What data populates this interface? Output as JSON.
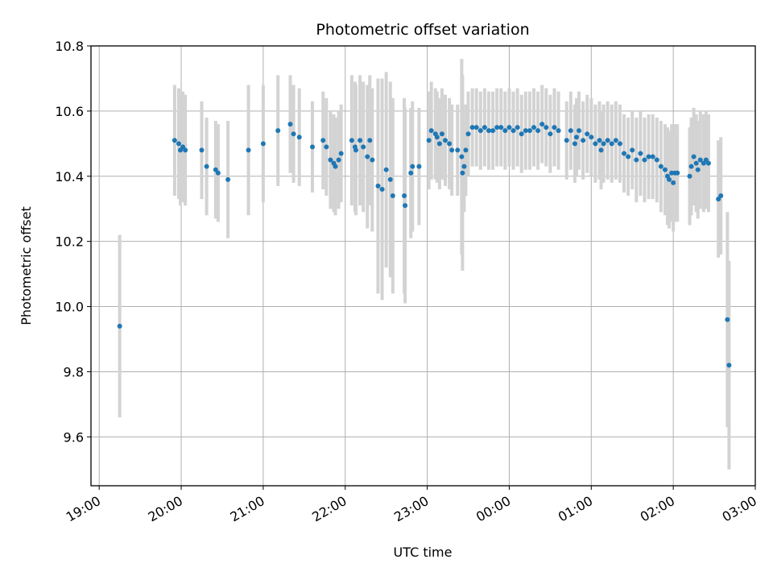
{
  "chart_data": {
    "type": "scatter",
    "title": "Photometric offset variation",
    "xlabel": "UTC time",
    "ylabel": "Photometric offset",
    "x_ticks": [
      "19:00",
      "20:00",
      "21:00",
      "22:00",
      "23:00",
      "00:00",
      "01:00",
      "02:00",
      "03:00"
    ],
    "y_ticks": [
      "9.6",
      "9.8",
      "10.0",
      "10.2",
      "10.4",
      "10.6",
      "10.8"
    ],
    "x_range_hours": [
      18.9,
      27.0
    ],
    "ylim": [
      9.45,
      10.8
    ],
    "grid": true,
    "colors": {
      "point": "#1f77b4",
      "errorbar": "#d3d3d3",
      "grid": "#b0b0b0"
    },
    "series": [
      {
        "x": [
          19.25,
          19.92,
          19.97,
          19.99,
          20.02,
          20.05,
          20.25,
          20.31,
          20.42,
          20.45,
          20.57,
          20.82,
          21.0,
          21.18,
          21.33,
          21.37,
          21.44,
          21.6,
          21.73,
          21.77,
          21.82,
          21.86,
          21.88,
          21.92,
          21.95,
          22.08,
          22.12,
          22.13,
          22.18,
          22.22,
          22.27,
          22.3,
          22.33,
          22.4,
          22.45,
          22.5,
          22.55,
          22.58,
          22.72,
          22.73,
          22.8,
          22.82,
          22.9,
          23.02,
          23.05,
          23.1,
          23.12,
          23.15,
          23.18,
          23.22,
          23.27,
          23.3,
          23.37,
          23.42,
          23.43,
          23.45,
          23.47,
          23.5,
          23.55,
          23.6,
          23.65,
          23.7,
          23.75,
          23.8,
          23.85,
          23.9,
          23.95,
          24.0,
          24.05,
          24.1,
          24.15,
          24.2,
          24.25,
          24.3,
          24.35,
          24.4,
          24.45,
          24.5,
          24.55,
          24.6,
          24.7,
          24.75,
          24.8,
          24.82,
          24.85,
          24.9,
          24.95,
          25.0,
          25.05,
          25.1,
          25.12,
          25.15,
          25.2,
          25.25,
          25.3,
          25.35,
          25.4,
          25.45,
          25.5,
          25.55,
          25.6,
          25.65,
          25.7,
          25.75,
          25.8,
          25.85,
          25.9,
          25.93,
          25.95,
          25.98,
          26.0,
          26.02,
          26.05,
          26.2,
          26.22,
          26.25,
          26.28,
          26.3,
          26.33,
          26.37,
          26.4,
          26.43,
          26.55,
          26.58,
          26.66,
          26.68
        ],
        "y": [
          9.94,
          10.51,
          10.5,
          10.48,
          10.49,
          10.48,
          10.48,
          10.43,
          10.42,
          10.41,
          10.39,
          10.48,
          10.5,
          10.54,
          10.56,
          10.53,
          10.52,
          10.49,
          10.51,
          10.49,
          10.45,
          10.44,
          10.43,
          10.45,
          10.47,
          10.51,
          10.49,
          10.48,
          10.51,
          10.49,
          10.46,
          10.51,
          10.45,
          10.37,
          10.36,
          10.42,
          10.39,
          10.34,
          10.34,
          10.31,
          10.41,
          10.43,
          10.43,
          10.51,
          10.54,
          10.53,
          10.52,
          10.5,
          10.53,
          10.51,
          10.5,
          10.48,
          10.48,
          10.46,
          10.41,
          10.43,
          10.48,
          10.53,
          10.55,
          10.55,
          10.54,
          10.55,
          10.54,
          10.54,
          10.55,
          10.55,
          10.54,
          10.55,
          10.54,
          10.55,
          10.53,
          10.54,
          10.54,
          10.55,
          10.54,
          10.56,
          10.55,
          10.53,
          10.55,
          10.54,
          10.51,
          10.54,
          10.5,
          10.52,
          10.54,
          10.51,
          10.53,
          10.52,
          10.5,
          10.51,
          10.48,
          10.5,
          10.51,
          10.5,
          10.51,
          10.5,
          10.47,
          10.46,
          10.48,
          10.45,
          10.47,
          10.45,
          10.46,
          10.46,
          10.45,
          10.43,
          10.42,
          10.4,
          10.39,
          10.41,
          10.38,
          10.41,
          10.41,
          10.4,
          10.43,
          10.46,
          10.44,
          10.42,
          10.45,
          10.44,
          10.45,
          10.44,
          10.33,
          10.34,
          9.96,
          9.82
        ],
        "yerr": [
          0.28,
          0.17,
          0.17,
          0.17,
          0.17,
          0.17,
          0.15,
          0.15,
          0.15,
          0.15,
          0.18,
          0.2,
          0.18,
          0.17,
          0.15,
          0.15,
          0.15,
          0.14,
          0.15,
          0.15,
          0.15,
          0.15,
          0.15,
          0.15,
          0.15,
          0.2,
          0.2,
          0.2,
          0.2,
          0.2,
          0.22,
          0.2,
          0.22,
          0.33,
          0.34,
          0.3,
          0.3,
          0.3,
          0.3,
          0.3,
          0.2,
          0.2,
          0.18,
          0.15,
          0.15,
          0.14,
          0.14,
          0.14,
          0.14,
          0.14,
          0.14,
          0.14,
          0.14,
          0.3,
          0.3,
          0.14,
          0.14,
          0.13,
          0.12,
          0.12,
          0.12,
          0.12,
          0.12,
          0.12,
          0.12,
          0.12,
          0.12,
          0.12,
          0.12,
          0.12,
          0.12,
          0.12,
          0.12,
          0.12,
          0.12,
          0.12,
          0.12,
          0.12,
          0.12,
          0.12,
          0.12,
          0.12,
          0.12,
          0.12,
          0.12,
          0.12,
          0.12,
          0.12,
          0.12,
          0.12,
          0.12,
          0.12,
          0.12,
          0.12,
          0.12,
          0.12,
          0.12,
          0.12,
          0.12,
          0.13,
          0.13,
          0.13,
          0.13,
          0.13,
          0.13,
          0.14,
          0.14,
          0.15,
          0.15,
          0.15,
          0.15,
          0.15,
          0.15,
          0.15,
          0.15,
          0.15,
          0.15,
          0.15,
          0.15,
          0.15,
          0.15,
          0.15,
          0.18,
          0.18,
          0.33,
          0.32
        ]
      }
    ]
  }
}
